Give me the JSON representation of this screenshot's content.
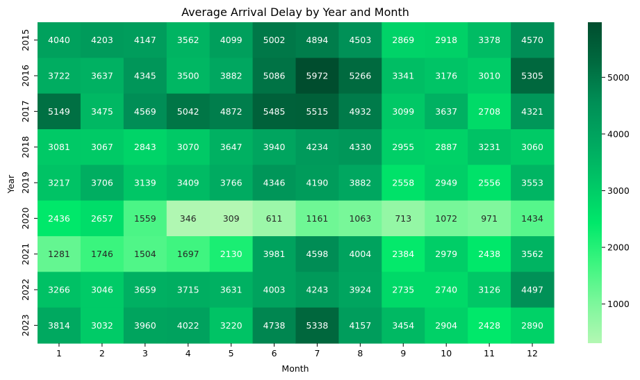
{
  "chart_data": {
    "type": "heatmap",
    "title": "Average Arrival Delay by Year and Month",
    "xlabel": "Month",
    "ylabel": "Year",
    "x_categories": [
      "1",
      "2",
      "3",
      "4",
      "5",
      "6",
      "7",
      "8",
      "9",
      "10",
      "11",
      "12"
    ],
    "y_categories": [
      "2015",
      "2016",
      "2017",
      "2018",
      "2019",
      "2020",
      "2021",
      "2022",
      "2023"
    ],
    "values": [
      [
        4040,
        4203,
        4147,
        3562,
        4099,
        5002,
        4894,
        4503,
        2869,
        2918,
        3378,
        4570
      ],
      [
        3722,
        3637,
        4345,
        3500,
        3882,
        5086,
        5972,
        5266,
        3341,
        3176,
        3010,
        5305
      ],
      [
        5149,
        3475,
        4569,
        5042,
        4872,
        5485,
        5515,
        4932,
        3099,
        3637,
        2708,
        4321
      ],
      [
        3081,
        3067,
        2843,
        3070,
        3647,
        3940,
        4234,
        4330,
        2955,
        2887,
        3231,
        3060
      ],
      [
        3217,
        3706,
        3139,
        3409,
        3766,
        4346,
        4190,
        3882,
        2558,
        2949,
        2556,
        3553
      ],
      [
        2436,
        2657,
        1559,
        346,
        309,
        611,
        1161,
        1063,
        713,
        1072,
        971,
        1434
      ],
      [
        1281,
        1746,
        1504,
        1697,
        2130,
        3981,
        4598,
        4004,
        2384,
        2979,
        2438,
        3562
      ],
      [
        3266,
        3046,
        3659,
        3715,
        3631,
        4003,
        4243,
        3924,
        2735,
        2740,
        3126,
        4497
      ],
      [
        3814,
        3032,
        3960,
        4022,
        3220,
        4738,
        5338,
        4157,
        3454,
        2904,
        2428,
        2890
      ]
    ],
    "colorbar": {
      "min": 309,
      "max": 5972,
      "ticks": [
        1000,
        2000,
        3000,
        4000,
        5000
      ],
      "tick_labels": [
        "1000",
        "2000",
        "3000",
        "4000",
        "5000"
      ],
      "colors": [
        "#b3f7b3",
        "#7cf79b",
        "#3cf57f",
        "#00e86a",
        "#00c666",
        "#00a860",
        "#008f56",
        "#006a3f",
        "#004d2e"
      ]
    }
  }
}
